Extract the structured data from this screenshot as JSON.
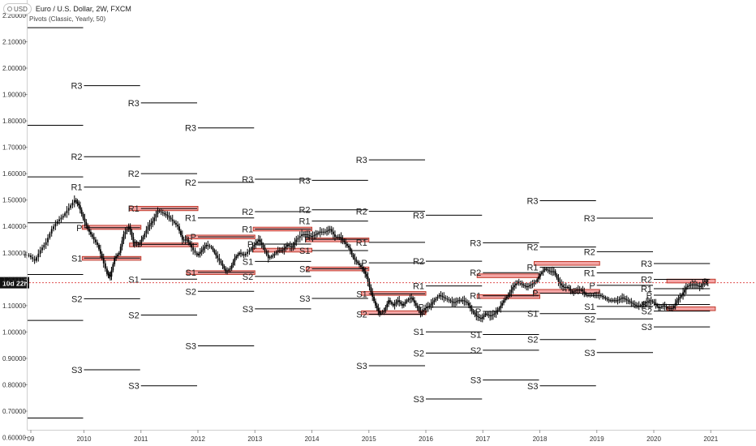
{
  "header": {
    "currency_badge": "USD",
    "title": "Euro / U.S. Dollar, 2W, FXCM",
    "indicator": "Pivots (Classic, Yearly, 50)"
  },
  "colors": {
    "pivot_line": "#000000",
    "zone_fill": "#f4a6a6",
    "zone_stroke": "#c0392b",
    "candle": "#000000",
    "price_line": "#e05252",
    "axis_text": "#333333"
  },
  "chart_data": {
    "type": "candlestick",
    "ylim": [
      0.5678,
      2.2582
    ],
    "y_ticks": [
      "0.60000",
      "0.70000",
      "0.80000",
      "0.90000",
      "1.00000",
      "1.10000",
      "1.20000",
      "1.30000",
      "1.40000",
      "1.50000",
      "1.60000",
      "1.70000",
      "1.80000",
      "1.90000",
      "2.00000",
      "2.10000",
      "2.20000"
    ],
    "x_ticks": [
      "09",
      "2010",
      "2011",
      "2012",
      "2013",
      "2014",
      "2015",
      "2016",
      "2017",
      "2018",
      "2019",
      "2020",
      "2021"
    ],
    "current_price": 1.1867,
    "current_price_label": "10d 22h",
    "pivots": [
      {
        "year": 2009,
        "R3": null,
        "R2": null,
        "R1": null,
        "P": null,
        "S1": null,
        "S2": null,
        "S3": null,
        "levels": [
          2.1533,
          1.7834,
          1.5878,
          1.4136,
          1.218,
          1.0438,
          0.6739
        ]
      },
      {
        "year": 2010,
        "R3": 1.9336,
        "R2": 1.6644,
        "R1": 1.5491,
        "P": 1.3952,
        "S1": 1.2799,
        "S2": 1.126,
        "S3": 0.8568
      },
      {
        "year": 2011,
        "R3": 1.8681,
        "R2": 1.6001,
        "R1": 1.468,
        "P": 1.3321,
        "S1": 1.2,
        "S2": 1.0641,
        "S3": 0.7961
      },
      {
        "year": 2012,
        "R3": 1.7734,
        "R2": 1.5669,
        "R1": 1.4324,
        "P": 1.3604,
        "S1": 1.2259,
        "S2": 1.1539,
        "S3": 0.9474
      },
      {
        "year": 2013,
        "R3": 1.5788,
        "R2": 1.456,
        "R1": 1.3901,
        "P": 1.3332,
        "S1": 1.2673,
        "S2": 1.2104,
        "S3": 1.0876
      },
      {
        "year": 2014,
        "R3": 1.5749,
        "R2": 1.463,
        "R1": 1.4203,
        "P": 1.3511,
        "S1": 1.3084,
        "S2": 1.2392,
        "S3": 1.1273
      },
      {
        "year": 2015,
        "R3": 1.6524,
        "R2": 1.4573,
        "R1": 1.3398,
        "P": 1.2622,
        "S1": 1.1447,
        "S2": 1.0671,
        "S3": 0.872
      },
      {
        "year": 2016,
        "R3": 1.4424,
        "R2": 1.2683,
        "R1": 1.1745,
        "P": 1.0942,
        "S1": 1.0004,
        "S2": 0.9201,
        "S3": 0.746
      },
      {
        "year": 2017,
        "R3": 1.3379,
        "R2": 1.2249,
        "R1": 1.1372,
        "P": 1.078,
        "S1": 0.9903,
        "S2": 0.931,
        "S3": 0.818
      },
      {
        "year": 2018,
        "R3": 1.4975,
        "R2": 1.3221,
        "R1": 1.245,
        "P": 1.1467,
        "S1": 1.0696,
        "S2": 0.9713,
        "S3": 0.7959
      },
      {
        "year": 2019,
        "R3": 1.4316,
        "R2": 1.3042,
        "R1": 1.2241,
        "P": 1.1768,
        "S1": 1.0967,
        "S2": 1.0494,
        "S3": 0.922
      },
      {
        "year": 2020,
        "R3": 1.2593,
        "R2": 1.1993,
        "R1": 1.1641,
        "P": 1.1393,
        "S1": 1.1041,
        "S2": 1.0793,
        "S3": 1.0193
      }
    ],
    "zones": [
      {
        "x0": 2009.97,
        "x1": 2011.0,
        "y0": 1.272,
        "y1": 1.286
      },
      {
        "x0": 2009.97,
        "x1": 2011.0,
        "y0": 1.389,
        "y1": 1.404
      },
      {
        "x0": 2010.8,
        "x1": 2012.0,
        "y0": 1.46,
        "y1": 1.476
      },
      {
        "x0": 2010.8,
        "x1": 2012.0,
        "y0": 1.323,
        "y1": 1.337
      },
      {
        "x0": 2011.8,
        "x1": 2013.0,
        "y0": 1.353,
        "y1": 1.367
      },
      {
        "x0": 2011.8,
        "x1": 2013.0,
        "y0": 1.218,
        "y1": 1.232
      },
      {
        "x0": 2012.97,
        "x1": 2014.0,
        "y0": 1.383,
        "y1": 1.397
      },
      {
        "x0": 2012.97,
        "x1": 2014.0,
        "y0": 1.303,
        "y1": 1.317
      },
      {
        "x0": 2013.9,
        "x1": 2015.0,
        "y0": 1.342,
        "y1": 1.356
      },
      {
        "x0": 2013.9,
        "x1": 2015.0,
        "y0": 1.232,
        "y1": 1.246
      },
      {
        "x0": 2014.87,
        "x1": 2016.0,
        "y0": 1.139,
        "y1": 1.153
      },
      {
        "x0": 2014.87,
        "x1": 2016.0,
        "y0": 1.066,
        "y1": 1.08
      },
      {
        "x0": 2016.9,
        "x1": 2018.0,
        "y0": 1.206,
        "y1": 1.22
      },
      {
        "x0": 2016.9,
        "x1": 2018.0,
        "y0": 1.127,
        "y1": 1.141
      },
      {
        "x0": 2017.9,
        "x1": 2019.05,
        "y0": 1.253,
        "y1": 1.267
      },
      {
        "x0": 2017.9,
        "x1": 2019.05,
        "y0": 1.147,
        "y1": 1.161
      },
      {
        "x0": 2020.23,
        "x1": 2021.08,
        "y0": 1.186,
        "y1": 1.2
      },
      {
        "x0": 2020.23,
        "x1": 2021.08,
        "y0": 1.081,
        "y1": 1.095
      }
    ],
    "price_path": [
      [
        2008.95,
        1.295
      ],
      [
        2009.05,
        1.29
      ],
      [
        2009.15,
        1.27
      ],
      [
        2009.25,
        1.31
      ],
      [
        2009.35,
        1.34
      ],
      [
        2009.45,
        1.39
      ],
      [
        2009.55,
        1.42
      ],
      [
        2009.65,
        1.44
      ],
      [
        2009.75,
        1.47
      ],
      [
        2009.85,
        1.5
      ],
      [
        2009.92,
        1.48
      ],
      [
        2010.0,
        1.43
      ],
      [
        2010.08,
        1.39
      ],
      [
        2010.16,
        1.36
      ],
      [
        2010.25,
        1.33
      ],
      [
        2010.33,
        1.28
      ],
      [
        2010.42,
        1.22
      ],
      [
        2010.47,
        1.21
      ],
      [
        2010.55,
        1.28
      ],
      [
        2010.63,
        1.3
      ],
      [
        2010.71,
        1.37
      ],
      [
        2010.8,
        1.4
      ],
      [
        2010.88,
        1.34
      ],
      [
        2010.97,
        1.33
      ],
      [
        2011.05,
        1.36
      ],
      [
        2011.14,
        1.4
      ],
      [
        2011.22,
        1.42
      ],
      [
        2011.31,
        1.46
      ],
      [
        2011.4,
        1.45
      ],
      [
        2011.48,
        1.44
      ],
      [
        2011.57,
        1.42
      ],
      [
        2011.66,
        1.4
      ],
      [
        2011.74,
        1.35
      ],
      [
        2011.82,
        1.35
      ],
      [
        2011.9,
        1.32
      ],
      [
        2012.0,
        1.29
      ],
      [
        2012.08,
        1.31
      ],
      [
        2012.16,
        1.33
      ],
      [
        2012.25,
        1.32
      ],
      [
        2012.33,
        1.29
      ],
      [
        2012.42,
        1.26
      ],
      [
        2012.5,
        1.23
      ],
      [
        2012.58,
        1.24
      ],
      [
        2012.66,
        1.28
      ],
      [
        2012.74,
        1.3
      ],
      [
        2012.82,
        1.29
      ],
      [
        2012.92,
        1.31
      ],
      [
        2013.0,
        1.33
      ],
      [
        2013.08,
        1.35
      ],
      [
        2013.16,
        1.32
      ],
      [
        2013.25,
        1.28
      ],
      [
        2013.33,
        1.29
      ],
      [
        2013.42,
        1.31
      ],
      [
        2013.5,
        1.31
      ],
      [
        2013.58,
        1.33
      ],
      [
        2013.66,
        1.32
      ],
      [
        2013.74,
        1.35
      ],
      [
        2013.84,
        1.37
      ],
      [
        2013.92,
        1.37
      ],
      [
        2014.0,
        1.36
      ],
      [
        2014.08,
        1.37
      ],
      [
        2014.16,
        1.38
      ],
      [
        2014.25,
        1.38
      ],
      [
        2014.33,
        1.39
      ],
      [
        2014.42,
        1.36
      ],
      [
        2014.5,
        1.36
      ],
      [
        2014.58,
        1.34
      ],
      [
        2014.66,
        1.32
      ],
      [
        2014.74,
        1.28
      ],
      [
        2014.82,
        1.26
      ],
      [
        2014.9,
        1.24
      ],
      [
        2014.97,
        1.21
      ],
      [
        2015.05,
        1.15
      ],
      [
        2015.13,
        1.1
      ],
      [
        2015.2,
        1.07
      ],
      [
        2015.28,
        1.08
      ],
      [
        2015.36,
        1.12
      ],
      [
        2015.44,
        1.1
      ],
      [
        2015.52,
        1.12
      ],
      [
        2015.6,
        1.1
      ],
      [
        2015.68,
        1.12
      ],
      [
        2015.76,
        1.13
      ],
      [
        2015.84,
        1.1
      ],
      [
        2015.92,
        1.07
      ],
      [
        2016.0,
        1.09
      ],
      [
        2016.08,
        1.1
      ],
      [
        2016.16,
        1.12
      ],
      [
        2016.25,
        1.14
      ],
      [
        2016.33,
        1.13
      ],
      [
        2016.42,
        1.12
      ],
      [
        2016.5,
        1.11
      ],
      [
        2016.58,
        1.12
      ],
      [
        2016.66,
        1.12
      ],
      [
        2016.74,
        1.11
      ],
      [
        2016.82,
        1.08
      ],
      [
        2016.9,
        1.06
      ],
      [
        2016.98,
        1.05
      ],
      [
        2017.06,
        1.07
      ],
      [
        2017.14,
        1.06
      ],
      [
        2017.22,
        1.07
      ],
      [
        2017.3,
        1.09
      ],
      [
        2017.38,
        1.12
      ],
      [
        2017.46,
        1.14
      ],
      [
        2017.54,
        1.17
      ],
      [
        2017.62,
        1.19
      ],
      [
        2017.7,
        1.18
      ],
      [
        2017.78,
        1.17
      ],
      [
        2017.86,
        1.18
      ],
      [
        2017.94,
        1.19
      ],
      [
        2018.02,
        1.22
      ],
      [
        2018.1,
        1.24
      ],
      [
        2018.18,
        1.23
      ],
      [
        2018.26,
        1.23
      ],
      [
        2018.34,
        1.19
      ],
      [
        2018.42,
        1.17
      ],
      [
        2018.5,
        1.17
      ],
      [
        2018.58,
        1.15
      ],
      [
        2018.66,
        1.16
      ],
      [
        2018.74,
        1.16
      ],
      [
        2018.82,
        1.14
      ],
      [
        2018.9,
        1.14
      ],
      [
        2018.98,
        1.14
      ],
      [
        2019.06,
        1.14
      ],
      [
        2019.14,
        1.13
      ],
      [
        2019.22,
        1.12
      ],
      [
        2019.3,
        1.12
      ],
      [
        2019.38,
        1.12
      ],
      [
        2019.46,
        1.13
      ],
      [
        2019.54,
        1.12
      ],
      [
        2019.62,
        1.11
      ],
      [
        2019.7,
        1.1
      ],
      [
        2019.78,
        1.1
      ],
      [
        2019.86,
        1.11
      ],
      [
        2019.94,
        1.12
      ],
      [
        2020.02,
        1.11
      ],
      [
        2020.1,
        1.09
      ],
      [
        2020.18,
        1.1
      ],
      [
        2020.26,
        1.09
      ],
      [
        2020.34,
        1.09
      ],
      [
        2020.42,
        1.12
      ],
      [
        2020.5,
        1.14
      ],
      [
        2020.58,
        1.17
      ],
      [
        2020.66,
        1.18
      ],
      [
        2020.74,
        1.18
      ],
      [
        2020.82,
        1.17
      ],
      [
        2020.9,
        1.19
      ],
      [
        2020.96,
        1.1867
      ]
    ]
  }
}
